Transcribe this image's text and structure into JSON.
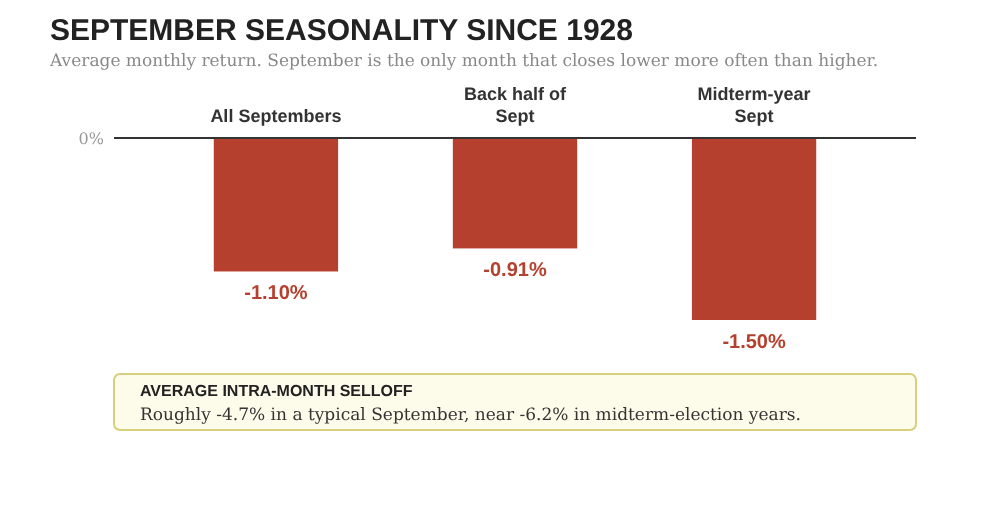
{
  "chart_data": {
    "type": "bar",
    "title": "SEPTEMBER SEASONALITY SINCE 1928",
    "subtitle": "Average monthly return. September is the only month that closes lower more often than higher.",
    "categories": [
      "All Septembers",
      "Back half of\nSept",
      "Midterm-year\nSept"
    ],
    "values": [
      -1.1,
      -0.91,
      -1.5
    ],
    "color": "#b5402e",
    "value_labels": [
      "-1.10%",
      "-0.91%",
      "-1.50%"
    ],
    "annotations": [
      "0%",
      "AVERAGE INTRA-MONTH SELLOFF",
      "Roughly -4.7% in a typical September, near -6.2% in midterm-election years."
    ]
  }
}
